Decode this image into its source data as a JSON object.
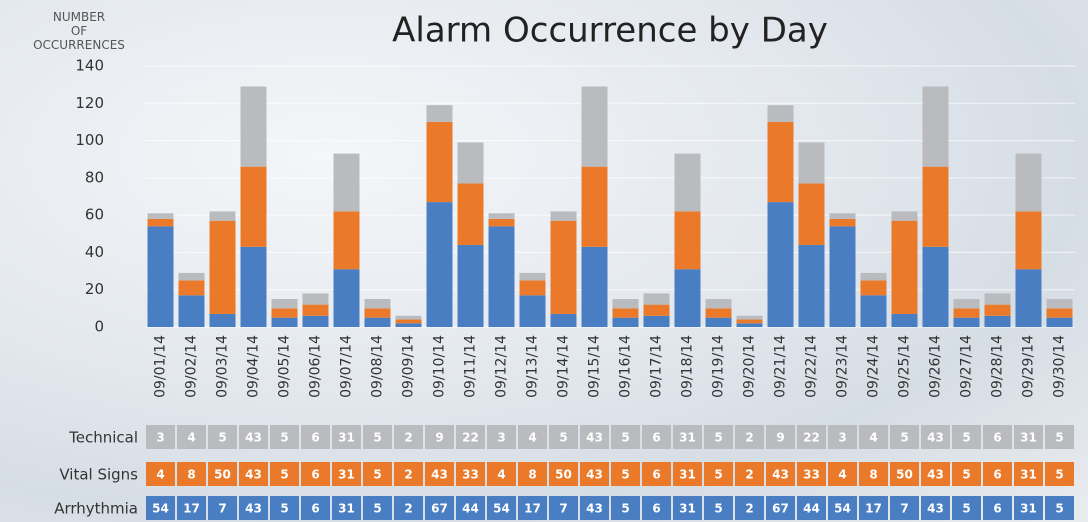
{
  "chart_data": {
    "type": "stacked_bar",
    "title": "Alarm Occurrence by Day",
    "y_label": "NUMBER OF OCCURRENCES",
    "categories": [
      "09/01/14",
      "09/02/14",
      "09/03/14",
      "09/04/14",
      "09/05/14",
      "09/06/14",
      "09/07/14",
      "09/08/14",
      "09/09/14",
      "09/10/14",
      "09/11/14",
      "09/12/14",
      "09/13/14",
      "09/14/14",
      "09/15/14",
      "09/16/14",
      "09/17/14",
      "09/18/14",
      "09/19/14",
      "09/20/14",
      "09/21/14",
      "09/22/14",
      "09/23/14",
      "09/24/14",
      "09/25/14",
      "09/26/14",
      "09/27/14",
      "09/28/14",
      "09/29/14",
      "09/30/14"
    ],
    "series": [
      {
        "name": "Arrhythmia",
        "color": "#4a7ec2",
        "values": [
          54,
          17,
          7,
          43,
          5,
          6,
          31,
          5,
          2,
          67,
          44,
          54,
          17,
          7,
          43,
          5,
          6,
          31,
          5,
          2,
          67,
          44,
          54,
          17,
          7,
          43,
          5,
          6,
          31,
          5
        ]
      },
      {
        "name": "Vital Signs",
        "color": "#ea7a2a",
        "values": [
          4,
          8,
          50,
          43,
          5,
          6,
          31,
          5,
          2,
          43,
          33,
          4,
          8,
          50,
          43,
          5,
          6,
          31,
          5,
          2,
          43,
          33,
          4,
          8,
          50,
          43,
          5,
          6,
          31,
          5
        ]
      },
      {
        "name": "Technical",
        "color": "#b9bbbf",
        "values": [
          3,
          4,
          5,
          43,
          5,
          6,
          31,
          5,
          2,
          9,
          22,
          3,
          4,
          5,
          43,
          5,
          6,
          31,
          5,
          2,
          9,
          22,
          3,
          4,
          5,
          43,
          5,
          6,
          31,
          5
        ]
      }
    ],
    "ylim": [
      0,
      140
    ],
    "yticks": [
      0,
      20,
      40,
      60,
      80,
      100,
      120,
      140
    ],
    "grid": true
  }
}
